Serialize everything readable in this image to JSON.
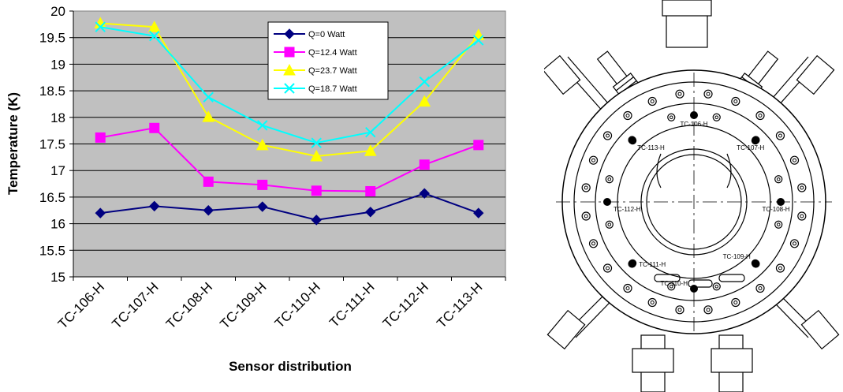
{
  "chart_data": {
    "type": "line",
    "title": "",
    "xlabel": "Sensor distribution",
    "ylabel": "Temperature (K)",
    "ylim": [
      15,
      20
    ],
    "yticks": [
      "15",
      "15.5",
      "16",
      "16.5",
      "17",
      "17.5",
      "18",
      "18.5",
      "19",
      "19.5",
      "20"
    ],
    "grid": true,
    "legend_position": "top-right",
    "categories": [
      "TC-106-H",
      "TC-107-H",
      "TC-108-H",
      "TC-109-H",
      "TC-110-H",
      "TC-111-H",
      "TC-112-H",
      "TC-113-H"
    ],
    "series": [
      {
        "name": "Q=0 Watt",
        "color": "#000080",
        "marker": "diamond",
        "values": [
          16.2,
          16.33,
          16.25,
          16.32,
          16.07,
          16.22,
          16.57,
          16.2
        ]
      },
      {
        "name": "Q=12.4 Watt",
        "color": "#ff00ff",
        "marker": "square",
        "values": [
          17.62,
          17.8,
          16.79,
          16.73,
          16.62,
          16.61,
          17.11,
          17.48
        ]
      },
      {
        "name": "Q=23.7 Watt",
        "color": "#ffff00",
        "marker": "triangle",
        "values": [
          19.77,
          19.7,
          18.01,
          17.48,
          17.27,
          17.37,
          18.3,
          19.55
        ]
      },
      {
        "name": "Q=18.7 Watt",
        "color": "#00ffff",
        "marker": "x",
        "values": [
          19.7,
          19.53,
          18.38,
          17.85,
          17.52,
          17.72,
          18.67,
          19.45
        ]
      }
    ],
    "plot_background": "#c0c0c0"
  },
  "drawing": {
    "sensor_labels": [
      "TC-106-H",
      "TC-107-H",
      "TC-108-H",
      "TC-109-H",
      "TC-110-H",
      "TC-111-H",
      "TC-112-H",
      "TC-113-H"
    ]
  }
}
